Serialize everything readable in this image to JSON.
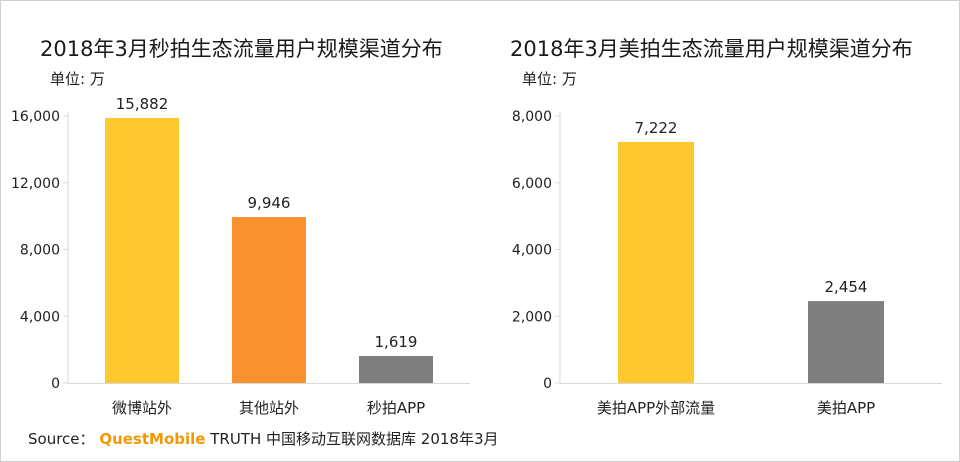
{
  "chart_data": [
    {
      "type": "bar",
      "title": "2018年3月秒拍生态流量用户规模渠道分布",
      "unit_label": "单位: 万",
      "categories": [
        "微博站外",
        "其他站外",
        "秒拍APP"
      ],
      "values": [
        15882,
        9946,
        1619
      ],
      "value_labels": [
        "15,882",
        "9,946",
        "1,619"
      ],
      "bar_colors": [
        "#fdc92f",
        "#f7922f",
        "#7f7f7f"
      ],
      "ylim": [
        0,
        16000
      ],
      "yticks": [
        0,
        4000,
        8000,
        12000,
        16000
      ],
      "ytick_labels": [
        "0",
        "4,000",
        "8,000",
        "12,000",
        "16,000"
      ],
      "xlabel": "",
      "ylabel": ""
    },
    {
      "type": "bar",
      "title": "2018年3月美拍生态流量用户规模渠道分布",
      "unit_label": "单位: 万",
      "categories": [
        "美拍APP外部流量",
        "美拍APP"
      ],
      "values": [
        7222,
        2454
      ],
      "value_labels": [
        "7,222",
        "2,454"
      ],
      "bar_colors": [
        "#fdc92f",
        "#7f7f7f"
      ],
      "ylim": [
        0,
        8000
      ],
      "yticks": [
        0,
        2000,
        4000,
        6000,
        8000
      ],
      "ytick_labels": [
        "0",
        "2,000",
        "4,000",
        "6,000",
        "8,000"
      ],
      "xlabel": "",
      "ylabel": ""
    }
  ],
  "source": {
    "prefix": "Source：",
    "brand": "QuestMobile",
    "text": "TRUTH 中国移动互联网数据库 2018年3月"
  }
}
